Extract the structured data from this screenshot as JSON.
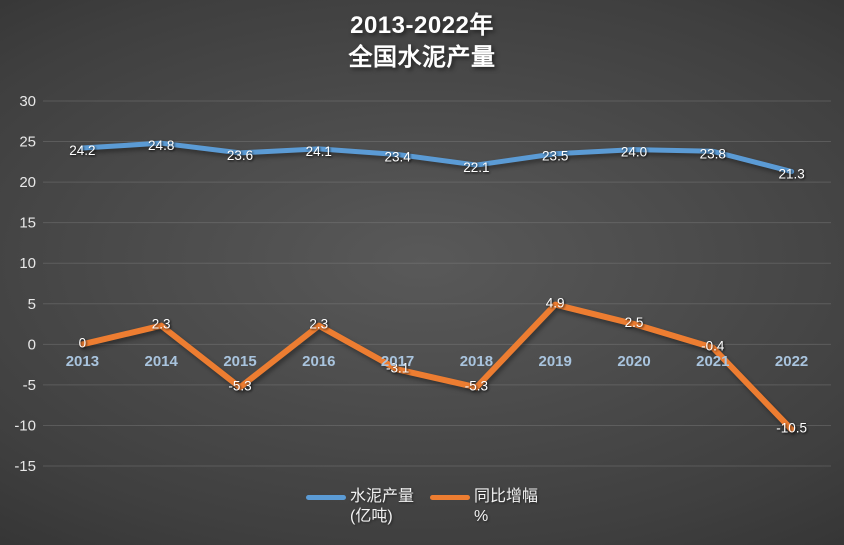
{
  "title": {
    "line1": "2013-2022年",
    "line2": "全国水泥产量"
  },
  "legend": {
    "items": [
      {
        "label": "水泥产量",
        "sublabel": "(亿吨)",
        "color": "#5B9BD5"
      },
      {
        "label": "同比增幅",
        "sublabel": "%",
        "color": "#ED7D31"
      }
    ]
  },
  "colors": {
    "background_center": "#595959",
    "background_mid": "#3f3f3f",
    "background_edge": "#232323",
    "gridline": "#8a8a8a",
    "y_tick_label": "#e8e8e8",
    "x_tick_label": "#a9c4de",
    "data_label": "#ffffff",
    "title_text": "#ffffff",
    "series_blue": "#5B9BD5",
    "series_orange": "#ED7D31"
  },
  "chart_data": {
    "type": "line",
    "title": "2013-2022年 全国水泥产量",
    "categories": [
      "2013",
      "2014",
      "2015",
      "2016",
      "2017",
      "2018",
      "2019",
      "2020",
      "2021",
      "2022"
    ],
    "series": [
      {
        "name": "水泥产量(亿吨)",
        "color": "#5B9BD5",
        "stroke_width": 5,
        "label_dy": 3,
        "values": [
          24.2,
          24.8,
          23.6,
          24.1,
          23.4,
          22.1,
          23.5,
          24.0,
          23.8,
          21.3
        ],
        "labels": [
          "24.2",
          "24.8",
          "23.6",
          "24.1",
          "23.4",
          "22.1",
          "23.5",
          "24.0",
          "23.8",
          "21.3"
        ]
      },
      {
        "name": "同比增幅%",
        "color": "#ED7D31",
        "stroke_width": 6,
        "label_dy": -1,
        "values": [
          0,
          2.3,
          -5.3,
          2.3,
          -3.1,
          -5.3,
          4.9,
          2.5,
          -0.4,
          -10.5
        ],
        "labels": [
          "0",
          "2.3",
          "-5.3",
          "2.3",
          "-3.1",
          "-5.3",
          "4.9",
          "2.5",
          "-0.4",
          "-10.5"
        ]
      }
    ],
    "y_axis": {
      "min": -15,
      "max": 30,
      "step": 5,
      "tick_labels": [
        "30",
        "25",
        "20",
        "15",
        "10",
        "5",
        "0",
        "-5",
        "-10",
        "-15"
      ]
    },
    "x_axis": {
      "label_row_y": "between 0 and -5 gridlines"
    },
    "grid": true,
    "legend_position": "bottom",
    "ylim": [
      -15,
      30
    ]
  }
}
